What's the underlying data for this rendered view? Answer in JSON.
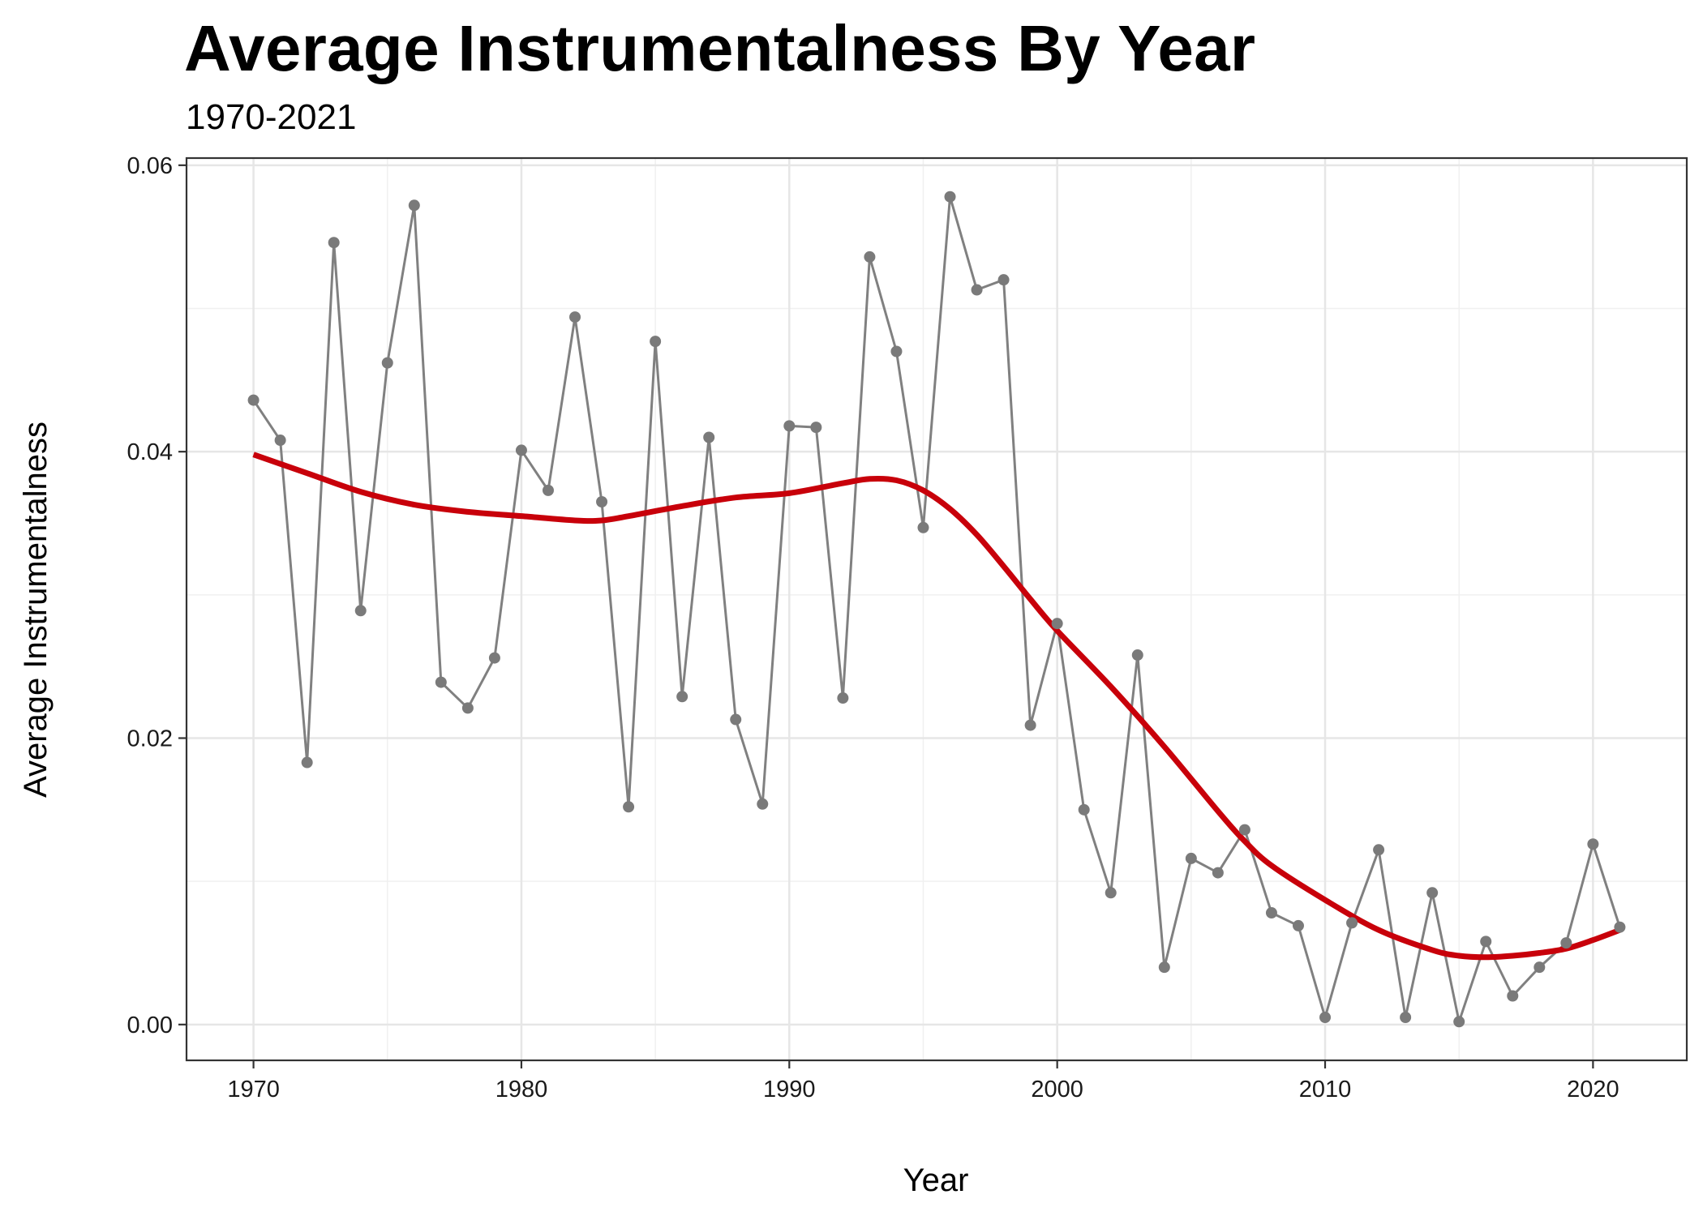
{
  "chart_data": {
    "type": "line",
    "title": "Average Instrumentalness By Year",
    "subtitle": "1970-2021",
    "xlabel": "Year",
    "ylabel": "Average Instrumentalness",
    "xlim": [
      1967.5,
      2023.5
    ],
    "ylim": [
      -0.0025,
      0.0605
    ],
    "x_ticks": [
      1970,
      1980,
      1990,
      2000,
      2010,
      2020
    ],
    "x_tick_labels": [
      "1970",
      "1980",
      "1990",
      "2000",
      "2010",
      "2020"
    ],
    "y_ticks": [
      0,
      0.02,
      0.04,
      0.06
    ],
    "y_tick_labels": [
      "0.00",
      "0.02",
      "0.04",
      "0.06"
    ],
    "grid": true,
    "legend": "none",
    "series": [
      {
        "kind": "points-and-line",
        "color": "#808080",
        "x": [
          1970,
          1971,
          1972,
          1973,
          1974,
          1975,
          1976,
          1977,
          1978,
          1979,
          1980,
          1981,
          1982,
          1983,
          1984,
          1985,
          1986,
          1987,
          1988,
          1989,
          1990,
          1991,
          1992,
          1993,
          1994,
          1995,
          1996,
          1997,
          1998,
          1999,
          2000,
          2001,
          2002,
          2003,
          2004,
          2005,
          2006,
          2007,
          2008,
          2009,
          2010,
          2011,
          2012,
          2013,
          2014,
          2015,
          2016,
          2017,
          2018,
          2019,
          2020,
          2021
        ],
        "y": [
          0.0436,
          0.0408,
          0.0183,
          0.0546,
          0.0289,
          0.0462,
          0.0572,
          0.0239,
          0.0221,
          0.0256,
          0.0401,
          0.0373,
          0.0494,
          0.0365,
          0.0152,
          0.0477,
          0.0229,
          0.041,
          0.0213,
          0.0154,
          0.0418,
          0.0417,
          0.0228,
          0.0536,
          0.047,
          0.0347,
          0.0578,
          0.0513,
          0.052,
          0.0209,
          0.028,
          0.015,
          0.0092,
          0.0258,
          0.004,
          0.0116,
          0.0106,
          0.0136,
          0.0078,
          0.0069,
          0.0005,
          0.0071,
          0.0122,
          0.0005,
          0.0092,
          0.0002,
          0.0058,
          0.002,
          0.004,
          0.0057,
          0.0126,
          0.0068
        ]
      },
      {
        "kind": "smooth",
        "color": "#c8000a",
        "x": [
          1970,
          1972,
          1974,
          1976,
          1978,
          1980,
          1982,
          1983,
          1984,
          1986,
          1988,
          1990,
          1992,
          1993,
          1994,
          1995,
          1996,
          1997,
          1998,
          1999,
          2000,
          2002,
          2004,
          2006,
          2007,
          2008,
          2010,
          2012,
          2014,
          2015,
          2016,
          2017,
          2018,
          2019,
          2020,
          2021
        ],
        "y": [
          0.0398,
          0.0385,
          0.0372,
          0.0363,
          0.0358,
          0.0355,
          0.0352,
          0.0352,
          0.0355,
          0.0362,
          0.0368,
          0.0371,
          0.0378,
          0.0381,
          0.038,
          0.0373,
          0.036,
          0.0342,
          0.032,
          0.0297,
          0.0275,
          0.0236,
          0.0194,
          0.0149,
          0.0128,
          0.0111,
          0.0087,
          0.0066,
          0.0052,
          0.0048,
          0.0047,
          0.0048,
          0.005,
          0.0053,
          0.0059,
          0.0066
        ]
      }
    ]
  }
}
